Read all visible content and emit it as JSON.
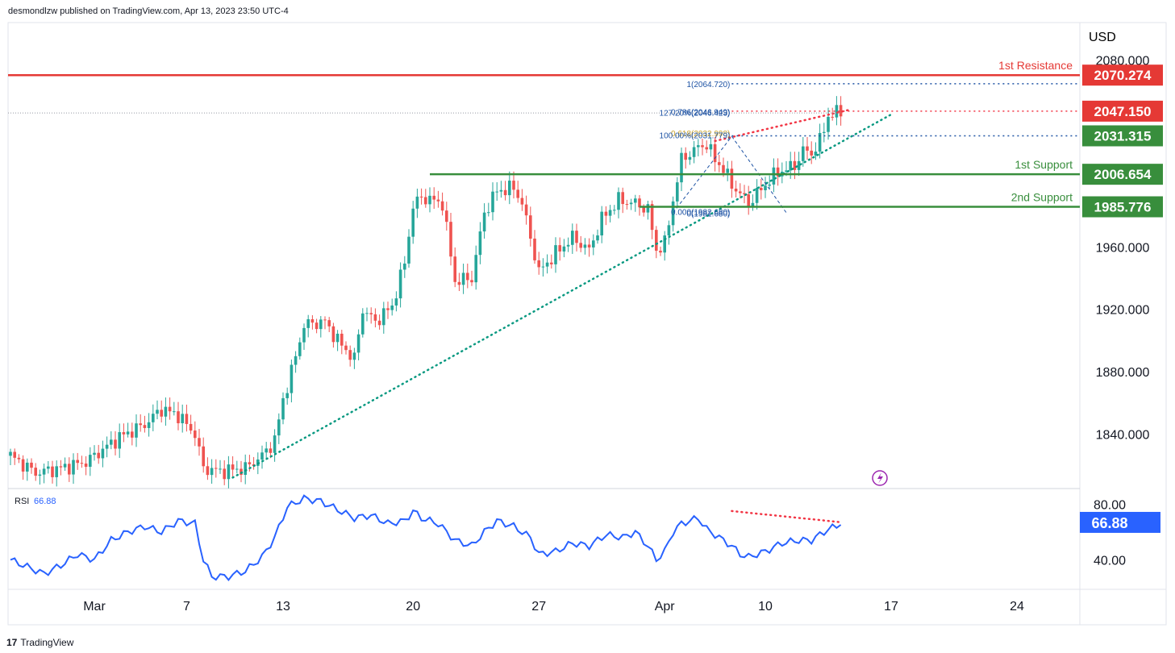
{
  "header": {
    "published": "desmondlzw published on TradingView.com, Apr 13, 2023 23:50 UTC-4"
  },
  "footer": {
    "logo_text": "TradingView"
  },
  "colors": {
    "up": "#26a69a",
    "down": "#ef5350",
    "resistance": "#e53935",
    "support": "#388e3c",
    "rsi_line": "#2962ff",
    "trend": "#089981",
    "fib": "#1e53a4",
    "fib_gold": "#c9a227"
  },
  "chart_data": {
    "type": "candlestick",
    "currency": "USD",
    "y_ticks": [
      "2080.000",
      "1960.000",
      "1920.000",
      "1880.000",
      "1840.000"
    ],
    "y_tick_values": [
      2080,
      1960,
      1920,
      1880,
      1840
    ],
    "ylim": [
      1806,
      2104
    ],
    "x_ticks": [
      {
        "label": "Mar",
        "bar": 20
      },
      {
        "label": "7",
        "bar": 42
      },
      {
        "label": "13",
        "bar": 65
      },
      {
        "label": "20",
        "bar": 96
      },
      {
        "label": "27",
        "bar": 126
      },
      {
        "label": "Apr",
        "bar": 156
      },
      {
        "label": "10",
        "bar": 180
      },
      {
        "label": "17",
        "bar": 210
      },
      {
        "label": "24",
        "bar": 240
      }
    ],
    "price_points": [
      [
        0,
        1826
      ],
      [
        6,
        1815
      ],
      [
        12,
        1818
      ],
      [
        18,
        1822
      ],
      [
        22,
        1830
      ],
      [
        26,
        1838
      ],
      [
        32,
        1846
      ],
      [
        36,
        1856
      ],
      [
        40,
        1852
      ],
      [
        44,
        1840
      ],
      [
        46,
        1818
      ],
      [
        50,
        1816
      ],
      [
        56,
        1818
      ],
      [
        60,
        1826
      ],
      [
        63,
        1836
      ],
      [
        65,
        1862
      ],
      [
        67,
        1880
      ],
      [
        70,
        1910
      ],
      [
        75,
        1912
      ],
      [
        78,
        1900
      ],
      [
        82,
        1888
      ],
      [
        84,
        1920
      ],
      [
        87,
        1912
      ],
      [
        91,
        1922
      ],
      [
        94,
        1950
      ],
      [
        96,
        1986
      ],
      [
        98,
        1992
      ],
      [
        103,
        1988
      ],
      [
        106,
        1938
      ],
      [
        110,
        1940
      ],
      [
        113,
        1982
      ],
      [
        116,
        1996
      ],
      [
        120,
        1998
      ],
      [
        122,
        1988
      ],
      [
        126,
        1944
      ],
      [
        130,
        1956
      ],
      [
        134,
        1966
      ],
      [
        138,
        1958
      ],
      [
        141,
        1978
      ],
      [
        145,
        1990
      ],
      [
        149,
        1988
      ],
      [
        152,
        1984
      ],
      [
        154,
        1958
      ],
      [
        156,
        1962
      ],
      [
        158,
        1990
      ],
      [
        160,
        2016
      ],
      [
        164,
        2024
      ],
      [
        166,
        2026
      ],
      [
        168,
        2016
      ],
      [
        170,
        2010
      ],
      [
        172,
        2000
      ],
      [
        176,
        1988
      ],
      [
        178,
        1994
      ],
      [
        181,
        2003
      ],
      [
        183,
        2008
      ],
      [
        187,
        2012
      ],
      [
        189,
        2022
      ],
      [
        191,
        2020
      ],
      [
        193,
        2028
      ],
      [
        195,
        2044
      ],
      [
        198,
        2047
      ]
    ],
    "levels": [
      {
        "name": "1st Resistance",
        "value": 2070.274,
        "label": "2070.274",
        "kind": "resistance"
      },
      {
        "name": "",
        "value": 2047.15,
        "label": "2047.150",
        "kind": "resistance-dotted"
      },
      {
        "name": "",
        "value": 2031.315,
        "label": "2031.315",
        "kind": "support-dotted"
      },
      {
        "name": "1st Support",
        "value": 2006.654,
        "label": "2006.654",
        "kind": "support"
      },
      {
        "name": "2nd Support",
        "value": 1985.776,
        "label": "1985.776",
        "kind": "support"
      }
    ],
    "fib_labels": [
      {
        "text": "1(2064.720)",
        "value": 2064.72,
        "color": "fib"
      },
      {
        "text": "0.786(2046.949)",
        "value": 2046.949,
        "color": "fib"
      },
      {
        "text": "127.20%(2046.423)",
        "value": 2046.423,
        "color": "fib"
      },
      {
        "text": "0.618(2032.998)",
        "value": 2032.998,
        "color": "fib_gold"
      },
      {
        "text": "100.00%(2031.779)",
        "value": 2031.779,
        "color": "fib"
      },
      {
        "text": "0.000(1982.680)",
        "value": 1982.68,
        "color": "fib"
      },
      {
        "text": "0(1981.680)",
        "value": 1981.68,
        "color": "fib"
      }
    ],
    "rsi": {
      "label": "RSI",
      "value_label": "66.88",
      "ticks": [
        "80.00",
        "40.00"
      ],
      "tick_values": [
        80,
        40
      ],
      "ylim": [
        20,
        90
      ],
      "points": [
        [
          0,
          40
        ],
        [
          4,
          35
        ],
        [
          8,
          30
        ],
        [
          12,
          36
        ],
        [
          16,
          44
        ],
        [
          20,
          40
        ],
        [
          24,
          54
        ],
        [
          28,
          60
        ],
        [
          32,
          64
        ],
        [
          36,
          60
        ],
        [
          40,
          68
        ],
        [
          44,
          66
        ],
        [
          46,
          40
        ],
        [
          48,
          28
        ],
        [
          52,
          28
        ],
        [
          56,
          32
        ],
        [
          60,
          42
        ],
        [
          63,
          56
        ],
        [
          66,
          78
        ],
        [
          70,
          84
        ],
        [
          74,
          82
        ],
        [
          78,
          76
        ],
        [
          82,
          70
        ],
        [
          86,
          72
        ],
        [
          90,
          66
        ],
        [
          94,
          68
        ],
        [
          96,
          75
        ],
        [
          98,
          70
        ],
        [
          102,
          66
        ],
        [
          106,
          54
        ],
        [
          110,
          50
        ],
        [
          113,
          60
        ],
        [
          116,
          68
        ],
        [
          120,
          64
        ],
        [
          124,
          56
        ],
        [
          126,
          44
        ],
        [
          130,
          46
        ],
        [
          134,
          52
        ],
        [
          138,
          50
        ],
        [
          142,
          58
        ],
        [
          146,
          56
        ],
        [
          149,
          60
        ],
        [
          152,
          50
        ],
        [
          154,
          40
        ],
        [
          156,
          46
        ],
        [
          158,
          60
        ],
        [
          160,
          66
        ],
        [
          164,
          70
        ],
        [
          166,
          62
        ],
        [
          168,
          58
        ],
        [
          172,
          50
        ],
        [
          174,
          44
        ],
        [
          176,
          42
        ],
        [
          180,
          46
        ],
        [
          184,
          52
        ],
        [
          188,
          54
        ],
        [
          191,
          54
        ],
        [
          193,
          58
        ],
        [
          195,
          62
        ],
        [
          197,
          64
        ],
        [
          198,
          66.88
        ]
      ]
    }
  }
}
